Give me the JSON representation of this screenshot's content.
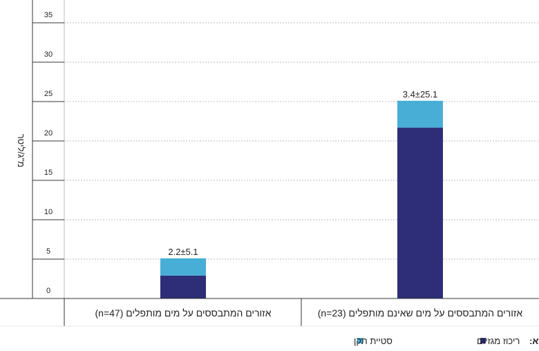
{
  "chart_data": {
    "type": "bar",
    "stacked": true,
    "direction": "rtl",
    "ylabel": "מ\"ג/ליטר",
    "ylim": [
      0,
      35
    ],
    "yticks": [
      0,
      5,
      10,
      15,
      20,
      25,
      30,
      35
    ],
    "grid": true,
    "categories": [
      "אזורים המתבססים על מים שאינם מותפלים (n=23)",
      "אזורים המתבססים על מים מותפלים (n=47)"
    ],
    "series": [
      {
        "name": "ריכוז מגזיום",
        "values": [
          25.1,
          5.1
        ],
        "color": "#2e2e78"
      },
      {
        "name": "סטיית תקן",
        "values": [
          3.4,
          2.2
        ],
        "color": "#48aed6"
      }
    ],
    "data_labels": [
      "3.4±25.1",
      "2.2±5.1"
    ],
    "legend_title": "מקרא:",
    "legend_position": "bottom"
  }
}
